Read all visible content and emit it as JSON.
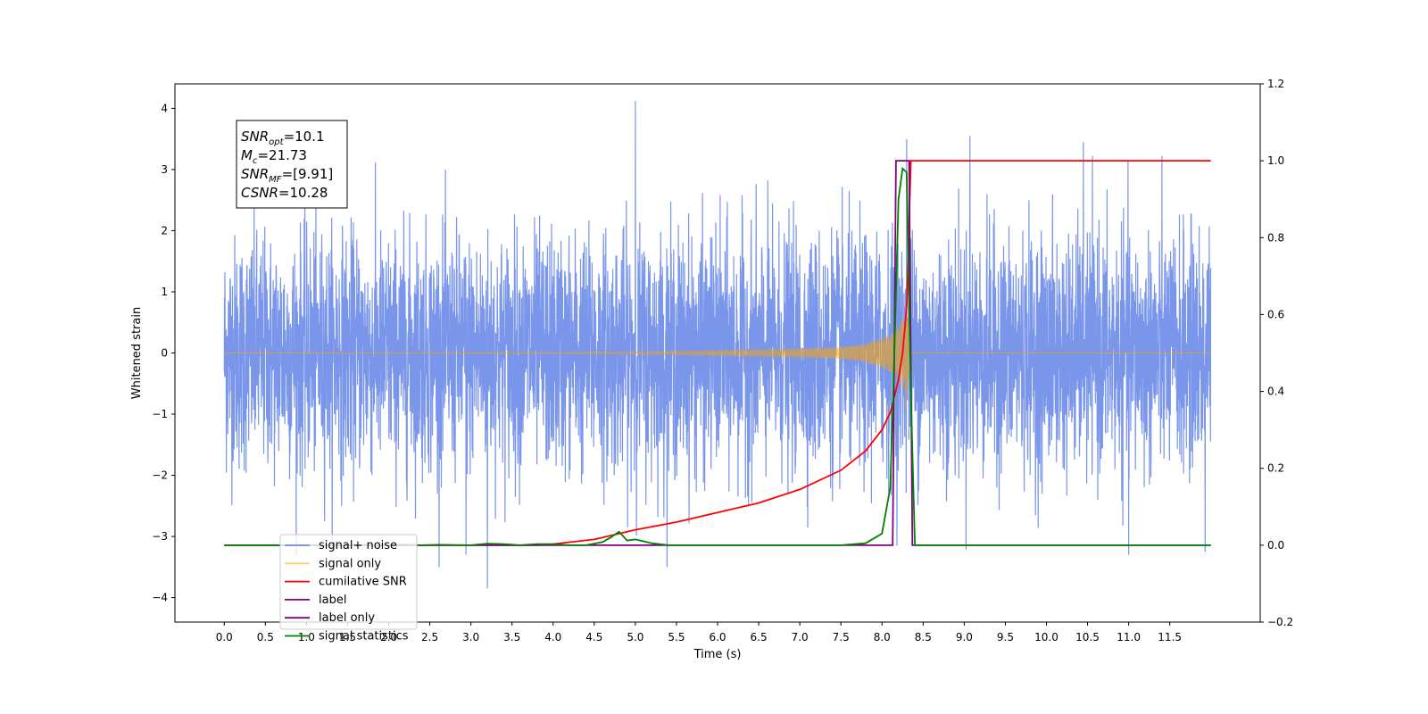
{
  "chart_data": {
    "type": "line",
    "xlabel": "Time (s)",
    "ylabel": "Whitened strain",
    "xlim": [
      -0.6,
      12.6
    ],
    "ylim_left": [
      -4.4,
      4.4
    ],
    "ylim_right": [
      -0.2,
      1.2
    ],
    "x_ticks": [
      0.0,
      0.5,
      1.0,
      1.5,
      2.0,
      2.5,
      3.0,
      3.5,
      4.0,
      4.5,
      5.0,
      5.5,
      6.0,
      6.5,
      7.0,
      7.5,
      8.0,
      8.5,
      9.0,
      9.5,
      10.0,
      10.5,
      11.0,
      11.5
    ],
    "x_tick_labels": [
      "0.0",
      "0.5",
      "1.0",
      "1.5",
      "2.0",
      "2.5",
      "3.0",
      "3.5",
      "4.0",
      "4.5",
      "5.0",
      "5.5",
      "6.0",
      "6.5",
      "7.0",
      "7.5",
      "8.0",
      "8.5",
      "9.0",
      "9.5",
      "10.0",
      "10.5",
      "11.0",
      "11.5"
    ],
    "y_left_ticks": [
      -4,
      -3,
      -2,
      -1,
      0,
      1,
      2,
      3,
      4
    ],
    "y_left_tick_labels": [
      "−4",
      "−3",
      "−2",
      "−1",
      "0",
      "1",
      "2",
      "3",
      "4"
    ],
    "y_right_ticks": [
      -0.2,
      0.0,
      0.2,
      0.4,
      0.6,
      0.8,
      1.0,
      1.2
    ],
    "y_right_tick_labels": [
      "−0.2",
      "0.0",
      "0.2",
      "0.4",
      "0.6",
      "0.8",
      "1.0",
      "1.2"
    ],
    "grid": false,
    "legend_placement": "lower-left",
    "annotation": {
      "lines": [
        {
          "sym": "SNR",
          "sub": "opt",
          "value": "=10.1"
        },
        {
          "sym": "M",
          "sub": "c",
          "value": "=21.73"
        },
        {
          "sym": "SNR",
          "sub": "MF",
          "value": "=[9.91]"
        },
        {
          "sym": "CSNR",
          "sub": "",
          "value": "=10.28"
        }
      ]
    },
    "series": [
      {
        "name": "signal+ noise",
        "axis": "left",
        "color": "#4169e1",
        "x_range": [
          0.0,
          12.0
        ],
        "std": 0.95,
        "min": -3.85,
        "max": 4.12,
        "peaks": [
          [
            5.0,
            4.12
          ],
          [
            9.07,
            3.55
          ],
          [
            10.45,
            3.45
          ],
          [
            8.3,
            3.5
          ],
          [
            11.93,
            3.2
          ],
          [
            3.2,
            -3.85
          ],
          [
            11.0,
            -3.3
          ],
          [
            2.94,
            -3.3
          ],
          [
            11.93,
            -3.25
          ]
        ]
      },
      {
        "name": "signal only",
        "axis": "left",
        "color": "#ffa500",
        "x": [
          0.0,
          4.0,
          5.0,
          6.0,
          7.0,
          7.5,
          7.8,
          8.0,
          8.1,
          8.2,
          8.25,
          8.3,
          8.35,
          12.0
        ],
        "amplitude": [
          0.0,
          0.01,
          0.02,
          0.04,
          0.07,
          0.1,
          0.15,
          0.25,
          0.32,
          0.45,
          0.6,
          0.9,
          0.0,
          0.0
        ]
      },
      {
        "name": "cumilative SNR",
        "axis": "right",
        "color": "#ff0000",
        "x": [
          0.0,
          3.8,
          4.0,
          4.5,
          5.0,
          5.5,
          6.0,
          6.5,
          7.0,
          7.5,
          7.8,
          8.0,
          8.1,
          8.2,
          8.25,
          8.3,
          8.32,
          8.35,
          12.0
        ],
        "values": [
          0.0,
          0.0,
          0.003,
          0.015,
          0.04,
          0.06,
          0.085,
          0.11,
          0.145,
          0.195,
          0.245,
          0.3,
          0.345,
          0.43,
          0.5,
          0.62,
          0.75,
          1.0,
          1.0
        ]
      },
      {
        "name": "label",
        "axis": "right",
        "color": "#800080",
        "x": [
          0.0,
          8.13,
          8.17,
          8.33,
          8.37,
          12.0
        ],
        "values": [
          0.0,
          0.0,
          1.0,
          1.0,
          0.0,
          0.0
        ]
      },
      {
        "name": "label only",
        "axis": "right",
        "color": "#800080",
        "x": [],
        "values": []
      },
      {
        "name": "signal statistics",
        "axis": "right",
        "color": "#008000",
        "x": [
          0.0,
          2.0,
          2.2,
          2.4,
          2.6,
          3.0,
          3.2,
          3.4,
          3.6,
          3.8,
          4.0,
          4.2,
          4.4,
          4.6,
          4.7,
          4.8,
          4.9,
          5.0,
          5.1,
          5.2,
          5.4,
          6.0,
          7.0,
          7.5,
          7.8,
          8.0,
          8.1,
          8.15,
          8.2,
          8.25,
          8.3,
          8.35,
          8.4,
          12.0
        ],
        "values": [
          0.0,
          0.0,
          0.002,
          0.0,
          0.001,
          0.0,
          0.004,
          0.003,
          0.0,
          0.003,
          0.003,
          0.0,
          0.0,
          0.008,
          0.02,
          0.035,
          0.012,
          0.015,
          0.01,
          0.005,
          0.0,
          0.0,
          0.0,
          0.0,
          0.005,
          0.03,
          0.15,
          0.5,
          0.9,
          0.98,
          0.97,
          0.4,
          0.0,
          0.0
        ]
      }
    ]
  }
}
